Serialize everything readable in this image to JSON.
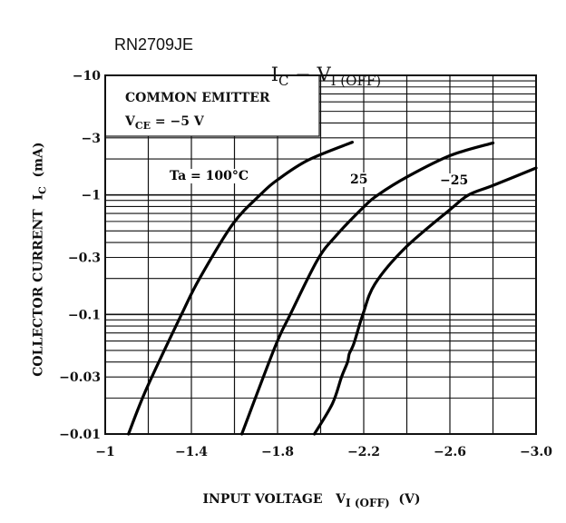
{
  "part_number": "RN2709JE",
  "chart_data": {
    "type": "line",
    "title": {
      "main": "I",
      "main_sub": "C",
      "sep": " − ",
      "second": "V",
      "second_sub": "I (OFF)"
    },
    "xlabel": {
      "text": "INPUT VOLTAGE",
      "sym": "V",
      "sub": "I (OFF)",
      "unit": "(V)"
    },
    "ylabel": {
      "text": "COLLECTOR CURRENT",
      "sym": "I",
      "sub": "C",
      "unit": "(mA)"
    },
    "x_scale": "linear",
    "y_scale": "log",
    "xlim": [
      -1,
      -3.0
    ],
    "ylim": [
      -0.01,
      -10
    ],
    "grid": true,
    "x_ticks": [
      -1,
      -1.4,
      -1.8,
      -2.2,
      -2.6,
      -3.0
    ],
    "x_tick_labels": [
      "−1",
      "−1.4",
      "−1.8",
      "−2.2",
      "−2.6",
      "−3.0"
    ],
    "y_ticks": [
      -10,
      -3,
      -1,
      -0.3,
      -0.1,
      -0.03,
      -0.01
    ],
    "y_tick_labels": [
      "−10",
      "−3",
      "−1",
      "−0.3",
      "−0.1",
      "−0.03",
      "−0.01"
    ],
    "conditions": {
      "line1": "COMMON EMITTER",
      "line2_sym": "V",
      "line2_sub": "CE",
      "line2_rest": " = −5 V"
    },
    "series": [
      {
        "name": "Ta = 100°C",
        "label": "Ta = 100°C",
        "x": [
          -1.108,
          -1.192,
          -1.354,
          -1.438,
          -1.592,
          -1.719,
          -1.803,
          -1.943,
          -2.147
        ],
        "y": [
          -0.01,
          -0.024,
          -0.1,
          -0.2,
          -0.57,
          -1.0,
          -1.35,
          -1.96,
          -2.76
        ]
      },
      {
        "name": "25",
        "label": "25",
        "x": [
          -1.634,
          -1.789,
          -1.859,
          -1.985,
          -2.069,
          -2.196,
          -2.266,
          -2.406,
          -2.603,
          -2.8
        ],
        "y": [
          -0.01,
          -0.054,
          -0.1,
          -0.285,
          -0.45,
          -0.78,
          -1.0,
          -1.43,
          -2.14,
          -2.72
        ]
      },
      {
        "name": "-25",
        "label": "−25",
        "x": [
          -1.971,
          -2.055,
          -2.097,
          -2.125,
          -2.133,
          -2.154,
          -2.196,
          -2.252,
          -2.392,
          -2.603,
          -2.687,
          -2.8,
          -3.0
        ],
        "y": [
          -0.01,
          -0.018,
          -0.03,
          -0.04,
          -0.047,
          -0.057,
          -0.1,
          -0.18,
          -0.36,
          -0.76,
          -1.0,
          -1.2,
          -1.68
        ]
      }
    ]
  }
}
